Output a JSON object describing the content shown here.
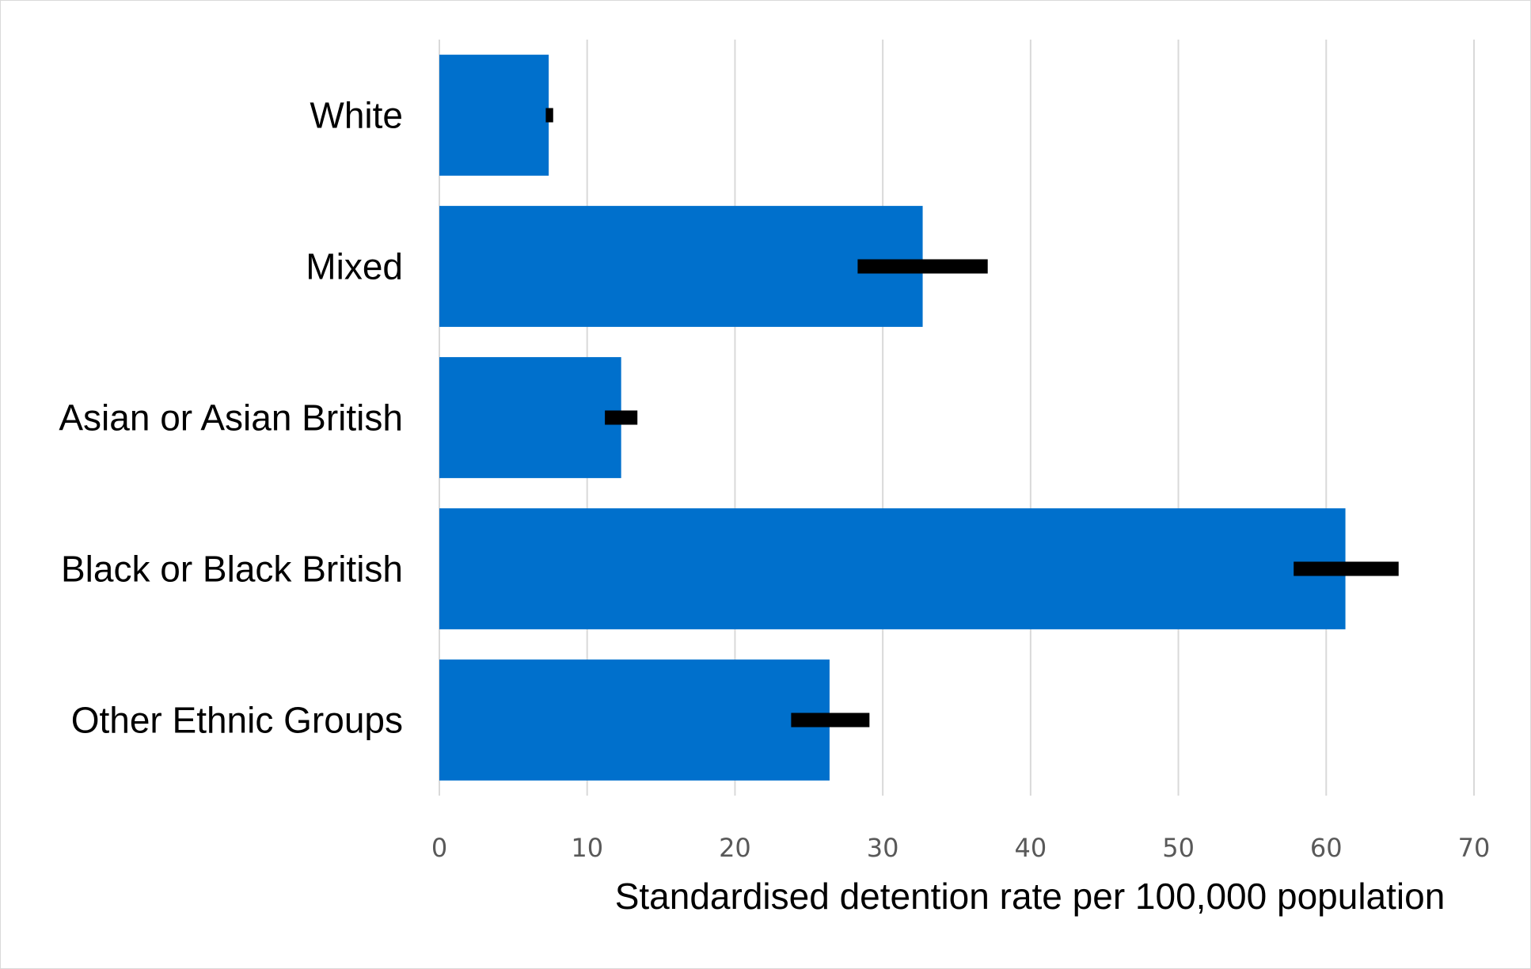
{
  "chart_data": {
    "type": "bar",
    "orientation": "horizontal",
    "categories": [
      "White",
      "Mixed",
      "Asian or Asian British",
      "Black or Black British",
      "Other Ethnic Groups"
    ],
    "values": [
      7.4,
      32.7,
      12.3,
      61.3,
      26.4
    ],
    "error_bars": [
      {
        "low": 7.2,
        "high": 7.7
      },
      {
        "low": 28.3,
        "high": 37.1
      },
      {
        "low": 11.2,
        "high": 13.4
      },
      {
        "low": 57.8,
        "high": 64.9
      },
      {
        "low": 23.8,
        "high": 29.1
      }
    ],
    "xlabel": "Standardised detention rate per 100,000 population",
    "ylabel": "",
    "xlim": [
      0,
      70
    ],
    "xticks": [
      "0",
      "10",
      "20",
      "30",
      "40",
      "50",
      "60",
      "70"
    ],
    "grid": "vertical",
    "legend": "none",
    "colors": {
      "bar": "#0070CC",
      "error_bar": "#000000",
      "grid": "#D9D9D9"
    }
  }
}
